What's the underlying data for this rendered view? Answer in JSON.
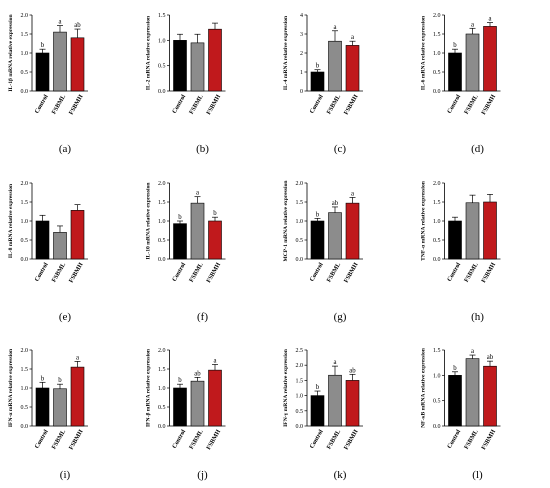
{
  "colors": {
    "Control": "#000000",
    "FSBML": "#8c8c8c",
    "FSBMH": "#c0191c"
  },
  "chart_data": [
    {
      "type": "bar",
      "label": "(a)",
      "ylabel": "IL-1β mRNA relative expression",
      "categories": [
        "Control",
        "FSBML",
        "FSBMH"
      ],
      "ylim": [
        0,
        2.0
      ],
      "ticks": [
        0,
        0.5,
        1.0,
        1.5,
        2.0
      ],
      "tick_labels": [
        "0.0",
        "0.5",
        "1.0",
        "1.5",
        "2.0"
      ],
      "values": [
        1.0,
        1.55,
        1.4
      ],
      "errors": [
        0.1,
        0.17,
        0.23
      ],
      "sig": [
        "b",
        "a",
        "ab"
      ]
    },
    {
      "type": "bar",
      "label": "(b)",
      "ylabel": "IL-2 mRNA relative expression",
      "categories": [
        "Control",
        "FSBML",
        "FSBMH"
      ],
      "ylim": [
        0,
        1.5
      ],
      "ticks": [
        0,
        0.5,
        1.0,
        1.5
      ],
      "tick_labels": [
        "0.0",
        "0.5",
        "1.0",
        "1.5"
      ],
      "values": [
        1.0,
        0.95,
        1.22
      ],
      "errors": [
        0.12,
        0.17,
        0.12
      ],
      "sig": [
        "",
        "",
        ""
      ]
    },
    {
      "type": "bar",
      "label": "(c)",
      "ylabel": "IL-4 mRNA relative expression",
      "categories": [
        "Control",
        "FSBML",
        "FSBMH"
      ],
      "ylim": [
        0,
        4
      ],
      "ticks": [
        0,
        1,
        2,
        3,
        4
      ],
      "tick_labels": [
        "0",
        "1",
        "2",
        "3",
        "4"
      ],
      "values": [
        1.0,
        2.62,
        2.4
      ],
      "errors": [
        0.12,
        0.55,
        0.22
      ],
      "sig": [
        "b",
        "a",
        "a"
      ]
    },
    {
      "type": "bar",
      "label": "(d)",
      "ylabel": "IL-6 mRNA relative expression",
      "categories": [
        "Control",
        "FSBML",
        "FSBMH"
      ],
      "ylim": [
        0,
        2.0
      ],
      "ticks": [
        0,
        0.5,
        1.0,
        1.5,
        2.0
      ],
      "tick_labels": [
        "0.0",
        "0.5",
        "1.0",
        "1.5",
        "2.0"
      ],
      "values": [
        1.0,
        1.5,
        1.7
      ],
      "errors": [
        0.1,
        0.15,
        0.1
      ],
      "sig": [
        "b",
        "a",
        "a"
      ]
    },
    {
      "type": "bar",
      "label": "(e)",
      "ylabel": "IL-8 mRNA relative expression",
      "categories": [
        "Control",
        "FSBML",
        "FSBMH"
      ],
      "ylim": [
        0,
        2.0
      ],
      "ticks": [
        0,
        0.5,
        1.0,
        1.5,
        2.0
      ],
      "tick_labels": [
        "0.0",
        "0.5",
        "1.0",
        "1.5",
        "2.0"
      ],
      "values": [
        1.0,
        0.7,
        1.28
      ],
      "errors": [
        0.15,
        0.17,
        0.15
      ],
      "sig": [
        "",
        "",
        ""
      ]
    },
    {
      "type": "bar",
      "label": "(f)",
      "ylabel": "IL-10 mRNA relative expression",
      "categories": [
        "Control",
        "FSBML",
        "FSBMH"
      ],
      "ylim": [
        0,
        2.0
      ],
      "ticks": [
        0,
        0.5,
        1.0,
        1.5,
        2.0
      ],
      "tick_labels": [
        "0.0",
        "0.5",
        "1.0",
        "1.5",
        "2.0"
      ],
      "values": [
        0.93,
        1.47,
        1.0
      ],
      "errors": [
        0.07,
        0.17,
        0.1
      ],
      "sig": [
        "b",
        "a",
        "b"
      ]
    },
    {
      "type": "bar",
      "label": "(g)",
      "ylabel": "MCP-1 mRNA relative expression",
      "categories": [
        "Control",
        "FSBML",
        "FSBMH"
      ],
      "ylim": [
        0,
        2.0
      ],
      "ticks": [
        0,
        0.5,
        1.0,
        1.5,
        2.0
      ],
      "tick_labels": [
        "0.0",
        "0.5",
        "1.0",
        "1.5",
        "2.0"
      ],
      "values": [
        1.0,
        1.22,
        1.47
      ],
      "errors": [
        0.07,
        0.15,
        0.15
      ],
      "sig": [
        "b",
        "ab",
        "a"
      ]
    },
    {
      "type": "bar",
      "label": "(h)",
      "ylabel": "TNF-α mRNA relative expression",
      "categories": [
        "Control",
        "FSBML",
        "FSBMH"
      ],
      "ylim": [
        0,
        2.0
      ],
      "ticks": [
        0,
        0.5,
        1.0,
        1.5,
        2.0
      ],
      "tick_labels": [
        "0.0",
        "0.5",
        "1.0",
        "1.5",
        "2.0"
      ],
      "values": [
        1.0,
        1.48,
        1.5
      ],
      "errors": [
        0.1,
        0.2,
        0.2
      ],
      "sig": [
        "",
        "",
        ""
      ]
    },
    {
      "type": "bar",
      "label": "(i)",
      "ylabel": "IFN-α mRNA relative expression",
      "categories": [
        "Control",
        "FSBML",
        "FSBMH"
      ],
      "ylim": [
        0,
        2.0
      ],
      "ticks": [
        0,
        0.5,
        1.0,
        1.5,
        2.0
      ],
      "tick_labels": [
        "0.0",
        "0.5",
        "1.0",
        "1.5",
        "2.0"
      ],
      "values": [
        1.0,
        0.98,
        1.55
      ],
      "errors": [
        0.15,
        0.12,
        0.15
      ],
      "sig": [
        "b",
        "b",
        "a"
      ]
    },
    {
      "type": "bar",
      "label": "(j)",
      "ylabel": "IFN-β mRNA relative expression",
      "categories": [
        "Control",
        "FSBML",
        "FSBMH"
      ],
      "ylim": [
        0,
        2.0
      ],
      "ticks": [
        0,
        0.5,
        1.0,
        1.5,
        2.0
      ],
      "tick_labels": [
        "0.0",
        "0.5",
        "1.0",
        "1.5",
        "2.0"
      ],
      "values": [
        1.0,
        1.18,
        1.47
      ],
      "errors": [
        0.1,
        0.1,
        0.15
      ],
      "sig": [
        "b",
        "ab",
        "a"
      ]
    },
    {
      "type": "bar",
      "label": "(k)",
      "ylabel": "IFN-γ mRNA relative expression",
      "categories": [
        "Control",
        "FSBML",
        "FSBMH"
      ],
      "ylim": [
        0,
        2.5
      ],
      "ticks": [
        0,
        0.5,
        1.0,
        1.5,
        2.0,
        2.5
      ],
      "tick_labels": [
        "0.0",
        "0.5",
        "1.0",
        "1.5",
        "2.0",
        "2.5"
      ],
      "values": [
        1.0,
        1.67,
        1.5
      ],
      "errors": [
        0.15,
        0.3,
        0.2
      ],
      "sig": [
        "b",
        "a",
        "ab"
      ]
    },
    {
      "type": "bar",
      "label": "(l)",
      "ylabel": "NF-κB mRNA relative expression",
      "categories": [
        "Control",
        "FSBML",
        "FSBMH"
      ],
      "ylim": [
        0,
        1.5
      ],
      "ticks": [
        0,
        0.5,
        1.0,
        1.5
      ],
      "tick_labels": [
        "0.0",
        "0.5",
        "1.0",
        "1.5"
      ],
      "values": [
        1.0,
        1.33,
        1.18
      ],
      "errors": [
        0.07,
        0.07,
        0.1
      ],
      "sig": [
        "b",
        "a",
        "ab"
      ]
    }
  ]
}
